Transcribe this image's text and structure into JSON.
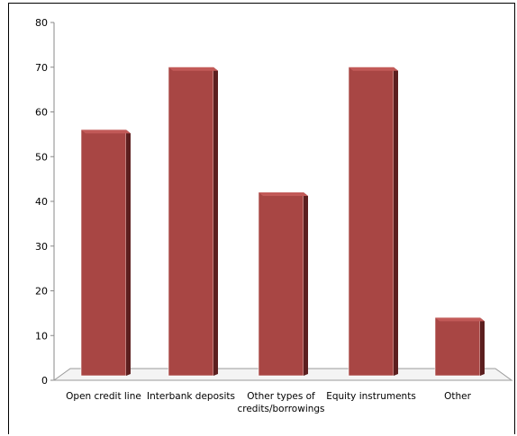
{
  "chart_data": {
    "type": "bar",
    "categories": [
      [
        "Open credit line"
      ],
      [
        "Interbank deposits"
      ],
      [
        "Other types of",
        "credits/borrowings"
      ],
      [
        "Equity instruments"
      ],
      [
        "Other"
      ]
    ],
    "values": [
      56,
      70,
      42,
      70,
      14
    ],
    "ylim": [
      0,
      80
    ],
    "yticks": [
      0,
      10,
      20,
      30,
      40,
      50,
      60,
      70,
      80
    ],
    "grid": false,
    "bar_color": "#a84644",
    "bar_side_color": "#5c1f1f",
    "bar_top_color": "#c25a58",
    "title": "",
    "xlabel": "",
    "ylabel": ""
  }
}
